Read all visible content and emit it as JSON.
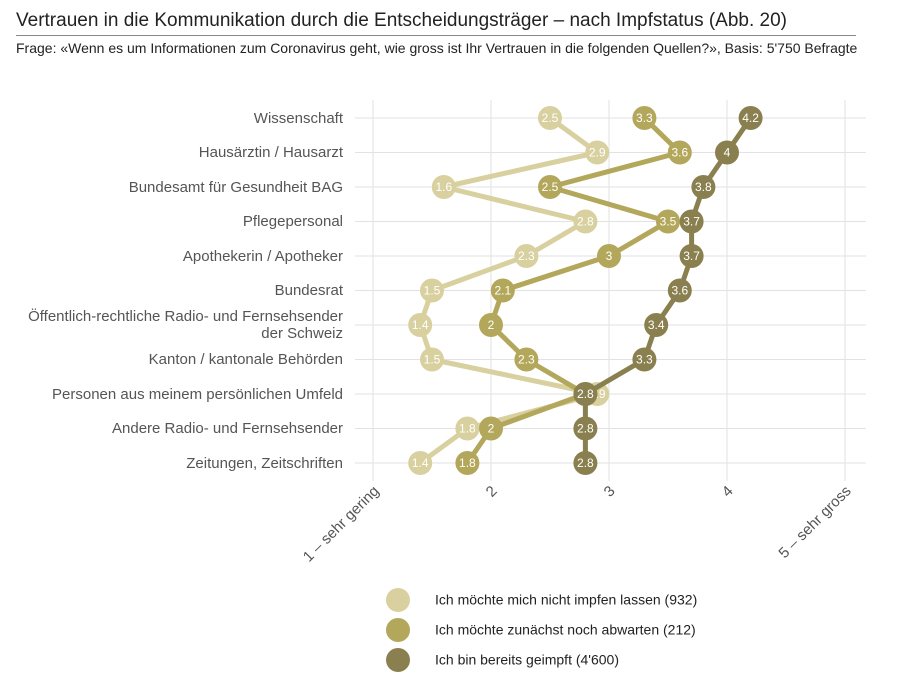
{
  "chart_data": {
    "type": "dotline",
    "title": "Vertrauen in die Kommunikation durch die Entscheidungsträger – nach Impfstatus  (Abb. 20)",
    "subtitle": "Frage: «Wenn es um Informationen zum Coronavirus geht, wie gross ist Ihr Vertrauen in die folgenden Quellen?», Basis: 5'750 Befragte",
    "categories": [
      "Wissenschaft",
      "Hausärztin / Hausarzt",
      "Bundesamt für Gesundheit BAG",
      "Pflegepersonal",
      "Apothekerin / Apotheker",
      "Bundesrat",
      "Öffentlich-rechtliche Radio- und Fernsehsender der Schweiz",
      "Kanton / kantonale Behörden",
      "Personen aus meinem persönlichen Umfeld",
      "Andere Radio- und Fernsehsender",
      "Zeitungen, Zeitschriften"
    ],
    "series": [
      {
        "name": "Ich möchte mich nicht impfen lassen (932)",
        "color": "#d9d09f",
        "values": [
          2.5,
          2.9,
          1.6,
          2.8,
          2.3,
          1.5,
          1.4,
          1.5,
          2.9,
          1.8,
          1.4
        ]
      },
      {
        "name": "Ich möchte zunächst noch abwarten (212)",
        "color": "#b3a75b",
        "values": [
          3.3,
          3.6,
          2.5,
          3.5,
          3,
          2.1,
          2,
          2.3,
          2.8,
          2,
          1.8
        ]
      },
      {
        "name": "Ich bin bereits geimpft (4'600)",
        "color": "#8a7f4f",
        "values": [
          4.2,
          4,
          3.8,
          3.7,
          3.7,
          3.6,
          3.4,
          3.3,
          2.8,
          2.8,
          2.8
        ]
      }
    ],
    "xlim": [
      1,
      5
    ],
    "xticks": [
      {
        "value": 1,
        "label": "1 – sehr gering"
      },
      2,
      3,
      4,
      {
        "value": 5,
        "label": "5 – sehr gross"
      }
    ],
    "grid": true
  }
}
